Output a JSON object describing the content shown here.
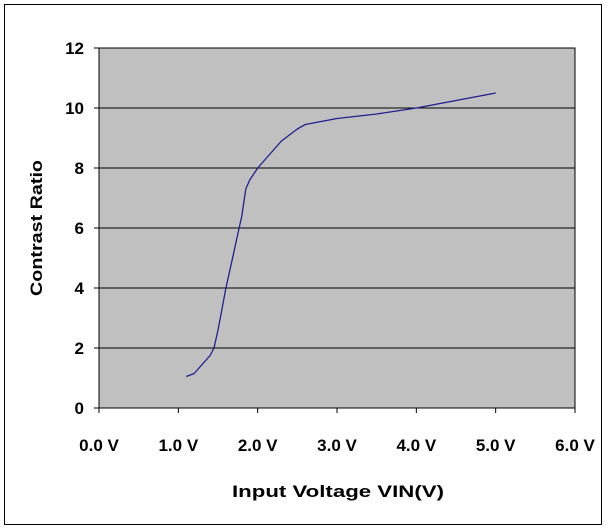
{
  "chart_data": {
    "type": "line",
    "title": "",
    "xlabel": "Input Voltage VIN(V)",
    "ylabel": "Contrast Ratio",
    "xlim": [
      0,
      6
    ],
    "ylim": [
      0,
      12
    ],
    "x_ticks": [
      0,
      1,
      2,
      3,
      4,
      5,
      6
    ],
    "x_tick_labels": [
      "0.0 V",
      "1.0 V",
      "2.0 V",
      "3.0 V",
      "4.0 V",
      "5.0 V",
      "6.0 V"
    ],
    "y_ticks": [
      0,
      2,
      4,
      6,
      8,
      10,
      12
    ],
    "y_tick_labels": [
      "0",
      "2",
      "4",
      "6",
      "8",
      "10",
      "12"
    ],
    "grid": "horizontal",
    "legend": "none",
    "series": [
      {
        "color": "#1f1f8f",
        "x": [
          1.1,
          1.2,
          1.3,
          1.4,
          1.45,
          1.5,
          1.55,
          1.6,
          1.65,
          1.7,
          1.75,
          1.8,
          1.85,
          1.9,
          1.95,
          2.0,
          2.1,
          2.2,
          2.3,
          2.4,
          2.5,
          2.6,
          2.8,
          3.0,
          3.5,
          4.0,
          4.5,
          5.0
        ],
        "y": [
          1.05,
          1.15,
          1.45,
          1.75,
          2.0,
          2.6,
          3.3,
          4.0,
          4.6,
          5.2,
          5.8,
          6.4,
          7.3,
          7.6,
          7.8,
          8.0,
          8.3,
          8.6,
          8.9,
          9.1,
          9.3,
          9.45,
          9.55,
          9.65,
          9.8,
          10.0,
          10.25,
          10.5
        ]
      }
    ],
    "colors": {
      "plot_background": "#c0c0c0",
      "line": "#1f1f8f",
      "gridline": "#000000"
    }
  }
}
